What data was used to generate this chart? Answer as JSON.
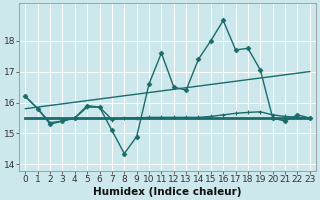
{
  "title": "",
  "xlabel": "Humidex (Indice chaleur)",
  "bg_color": "#cce8ec",
  "grid_color": "#b0d8dc",
  "line_color": "#1a6b6b",
  "x_values": [
    0,
    1,
    2,
    3,
    4,
    5,
    6,
    7,
    8,
    9,
    10,
    11,
    12,
    13,
    14,
    15,
    16,
    17,
    18,
    19,
    20,
    21,
    22,
    23
  ],
  "y_main": [
    16.2,
    15.8,
    15.3,
    15.4,
    15.5,
    15.9,
    15.85,
    15.1,
    14.35,
    14.9,
    16.6,
    17.6,
    16.5,
    16.4,
    17.4,
    18.0,
    18.65,
    17.7,
    17.75,
    17.05,
    15.5,
    15.4,
    15.6,
    15.5
  ],
  "y_slow": [
    16.2,
    15.8,
    15.35,
    15.4,
    15.5,
    15.85,
    15.85,
    15.45,
    15.5,
    15.5,
    15.52,
    15.52,
    15.52,
    15.52,
    15.52,
    15.55,
    15.6,
    15.65,
    15.68,
    15.7,
    15.6,
    15.55,
    15.52,
    15.5
  ],
  "y_flat": [
    15.5,
    15.5,
    15.5,
    15.5,
    15.5,
    15.5,
    15.5,
    15.5,
    15.5,
    15.5,
    15.5,
    15.5,
    15.5,
    15.5,
    15.5,
    15.5,
    15.5,
    15.5,
    15.5,
    15.5,
    15.5,
    15.5,
    15.5,
    15.5
  ],
  "trend_x": [
    0,
    23
  ],
  "trend_y": [
    15.8,
    17.0
  ],
  "ylim": [
    13.8,
    19.2
  ],
  "xlim": [
    -0.5,
    23.5
  ],
  "yticks": [
    14,
    15,
    16,
    17,
    18
  ],
  "xticks": [
    0,
    1,
    2,
    3,
    4,
    5,
    6,
    7,
    8,
    9,
    10,
    11,
    12,
    13,
    14,
    15,
    16,
    17,
    18,
    19,
    20,
    21,
    22,
    23
  ],
  "xlabel_fontsize": 7.5,
  "tick_fontsize": 6.5
}
